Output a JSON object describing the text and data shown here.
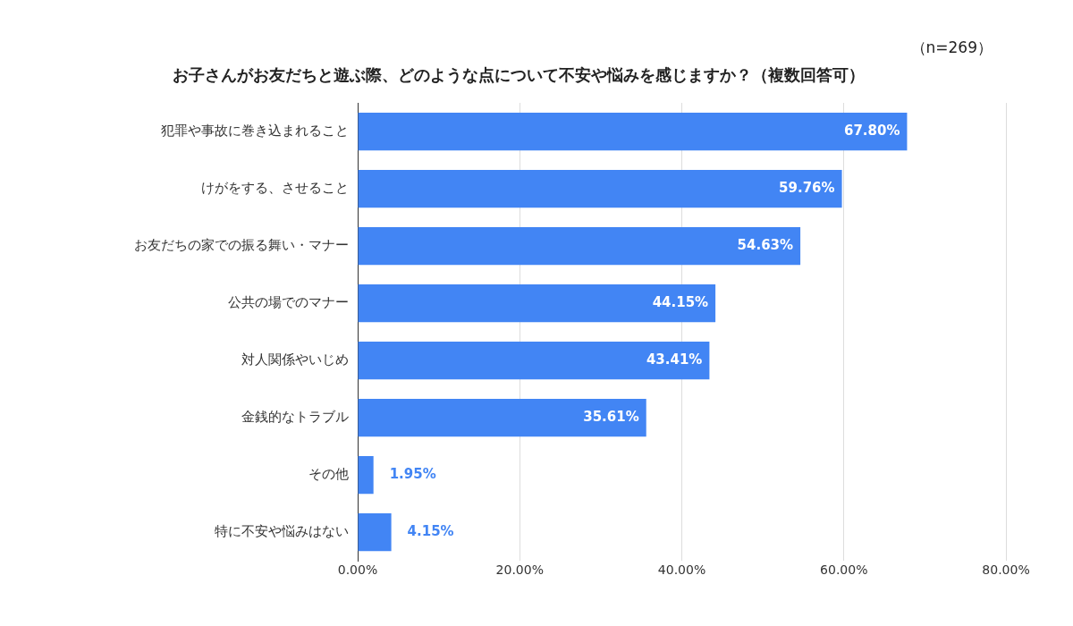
{
  "chart_data": {
    "type": "bar",
    "orientation": "horizontal",
    "title": "お子さんがお友だちと遊ぶ際、どのような点について不安や悩みを感じますか？（複数回答可）",
    "annotations": [
      "（n=269）"
    ],
    "categories": [
      "犯罪や事故に巻き込まれること",
      "けがをする、させること",
      "お友だちの家での振る舞い・マナー",
      "公共の場でのマナー",
      "対人関係やいじめ",
      "金銭的なトラブル",
      "その他",
      "特に不安や悩みはない"
    ],
    "values": [
      67.8,
      59.76,
      54.63,
      44.15,
      43.41,
      35.61,
      1.95,
      4.15
    ],
    "value_labels": [
      "67.80%",
      "59.76%",
      "54.63%",
      "44.15%",
      "43.41%",
      "35.61%",
      "1.95%",
      "4.15%"
    ],
    "color": "#4285f4",
    "xlim": [
      0,
      80
    ],
    "xticks": [
      {
        "value": 0,
        "label": "0.00%"
      },
      {
        "value": 20,
        "label": "20.00%"
      },
      {
        "value": 40,
        "label": "40.00%"
      },
      {
        "value": 60,
        "label": "60.00%"
      },
      {
        "value": 80,
        "label": "80.00%"
      }
    ],
    "grid": "x",
    "legend": false
  }
}
